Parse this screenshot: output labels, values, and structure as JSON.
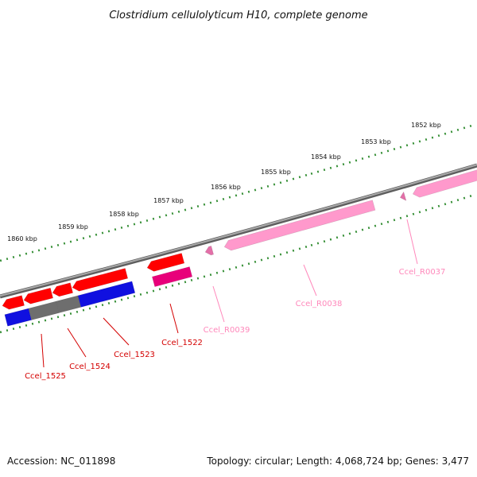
{
  "title": "Clostridium cellulolyticum H10, complete genome",
  "footer": {
    "accession": "Accession: NC_011898",
    "summary": "Topology: circular; Length: 4,068,724 bp; Genes: 3,477"
  },
  "colors": {
    "backbone": "#7a7a7a",
    "tick": "#2e8b2e",
    "cds": "#ff0000",
    "cds_dark": "#cc0000",
    "cog_blue": "#1010e0",
    "cog_grey": "#6e6e6e",
    "pseudo": "#e8007a",
    "rna": "#ff99cc",
    "rna_dark": "#e36fa8",
    "label_cds": "#d40000",
    "label_rna": "#ff88bb"
  },
  "ticks": [
    {
      "kbp": 1852,
      "label": "1852 kbp"
    },
    {
      "kbp": 1853,
      "label": "1853 kbp"
    },
    {
      "kbp": 1854,
      "label": "1854 kbp"
    },
    {
      "kbp": 1855,
      "label": "1855 kbp"
    },
    {
      "kbp": 1856,
      "label": "1856 kbp"
    },
    {
      "kbp": 1857,
      "label": "1857 kbp"
    },
    {
      "kbp": 1858,
      "label": "1858 kbp"
    },
    {
      "kbp": 1859,
      "label": "1859 kbp"
    },
    {
      "kbp": 1860,
      "label": "1860 kbp"
    }
  ],
  "genes": [
    {
      "name": "Ccel_1525",
      "type": "CDS"
    },
    {
      "name": "Ccel_1524",
      "type": "CDS"
    },
    {
      "name": "Ccel_1523",
      "type": "CDS"
    },
    {
      "name": "Ccel_1522",
      "type": "CDS"
    },
    {
      "name": "Ccel_R0039",
      "type": "RNA"
    },
    {
      "name": "Ccel_R0038",
      "type": "RNA"
    },
    {
      "name": "Ccel_R0037",
      "type": "RNA"
    }
  ]
}
